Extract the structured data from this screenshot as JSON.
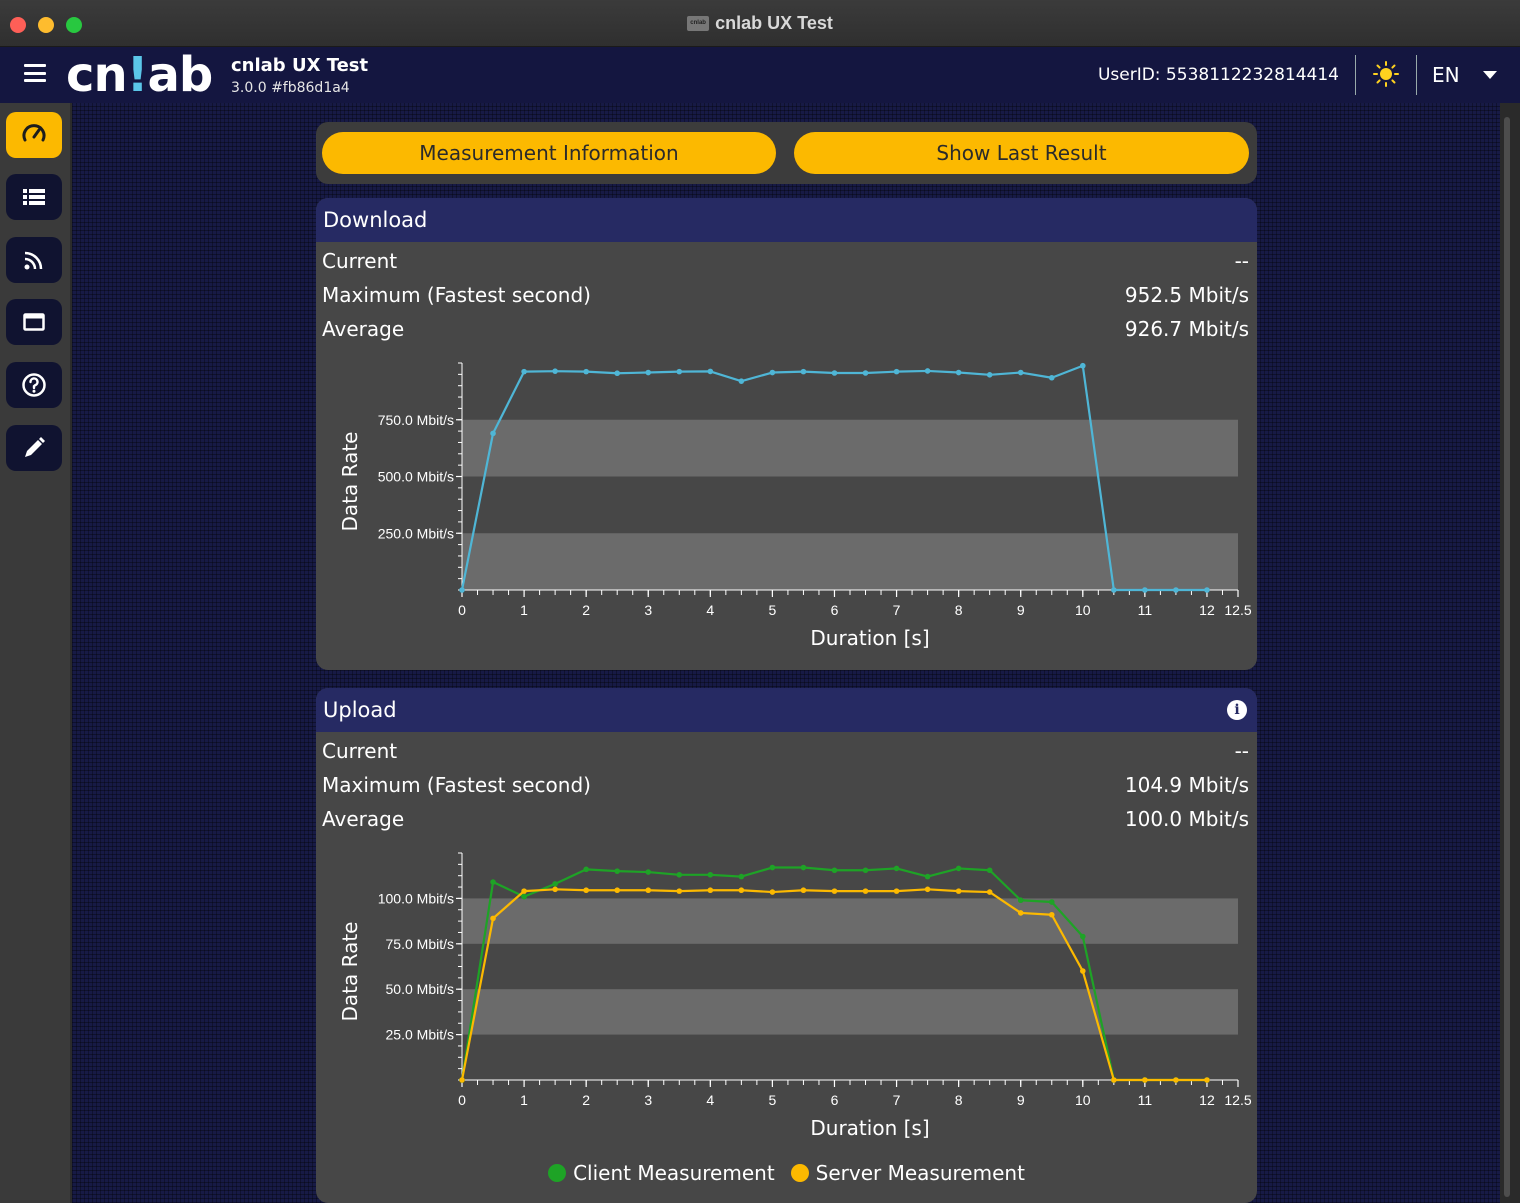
{
  "window": {
    "title": "cnlab UX Test",
    "icon_text": "cnlab"
  },
  "header": {
    "logo_left": "cn",
    "logo_bang": "!",
    "logo_right": "ab",
    "app_name": "cnlab UX Test",
    "version": "3.0.0 #fb86d1a4",
    "userid": "UserID: 5538112232814414",
    "language": "EN",
    "theme_icon": "sun-icon"
  },
  "sidebar": {
    "items": [
      {
        "icon": "speedometer-icon",
        "active": true
      },
      {
        "icon": "list-icon",
        "active": false
      },
      {
        "icon": "rss-icon",
        "active": false
      },
      {
        "icon": "window-icon",
        "active": false
      },
      {
        "icon": "help-icon",
        "active": false
      },
      {
        "icon": "pen-icon",
        "active": false
      }
    ]
  },
  "toolbar": {
    "measurement_info": "Measurement Information",
    "show_last_result": "Show Last Result"
  },
  "colors": {
    "accent": "#fcb900",
    "download_line": "#4fb6d6",
    "client": "#1ea326",
    "server": "#fcb900"
  },
  "download": {
    "title": "Download",
    "current_label": "Current",
    "current_value": "--",
    "max_label": "Maximum (Fastest second)",
    "max_value": "952.5 Mbit/s",
    "avg_label": "Average",
    "avg_value": "926.7 Mbit/s"
  },
  "upload": {
    "title": "Upload",
    "current_label": "Current",
    "current_value": "--",
    "max_label": "Maximum (Fastest second)",
    "max_value": "104.9 Mbit/s",
    "avg_label": "Average",
    "avg_value": "100.0 Mbit/s",
    "legend_client": "Client Measurement",
    "legend_server": "Server Measurement"
  },
  "chart_data": [
    {
      "type": "line",
      "xlabel": "Duration [s]",
      "ylabel": "Data Rate",
      "xlim": [
        0,
        12.5
      ],
      "ylim": [
        0,
        1000
      ],
      "xticks": [
        0,
        1,
        2,
        3,
        4,
        5,
        6,
        7,
        8,
        9,
        10,
        11,
        12,
        12.5
      ],
      "yticks": [
        250,
        500,
        750
      ],
      "ytick_labels": [
        "250.0 Mbit/s",
        "500.0 Mbit/s",
        "750.0 Mbit/s"
      ],
      "grid": "alternating bands",
      "series": [
        {
          "x": [
            0,
            0.5,
            1,
            1.5,
            2,
            2.5,
            3,
            3.5,
            4,
            4.5,
            5,
            5.5,
            6,
            6.5,
            7,
            7.5,
            8,
            8.5,
            9,
            9.5,
            10,
            10.5,
            11,
            11.5,
            12
          ],
          "values": [
            0,
            690,
            962,
            964,
            962,
            955,
            958,
            962,
            963,
            920,
            958,
            962,
            956,
            956,
            962,
            965,
            958,
            948,
            958,
            935,
            988,
            0,
            0,
            0,
            0
          ]
        }
      ]
    },
    {
      "type": "line",
      "xlabel": "Duration [s]",
      "ylabel": "Data Rate",
      "xlim": [
        0,
        12.5
      ],
      "ylim": [
        0,
        125
      ],
      "xticks": [
        0,
        1,
        2,
        3,
        4,
        5,
        6,
        7,
        8,
        9,
        10,
        11,
        12,
        12.5
      ],
      "yticks": [
        25,
        50,
        75,
        100
      ],
      "ytick_labels": [
        "25.0 Mbit/s",
        "50.0 Mbit/s",
        "75.0 Mbit/s",
        "100.0 Mbit/s"
      ],
      "grid": "alternating bands",
      "legend": "bottom-center",
      "series": [
        {
          "name": "Client Measurement",
          "x": [
            0,
            0.5,
            1,
            1.5,
            2,
            2.5,
            3,
            3.5,
            4,
            4.5,
            5,
            5.5,
            6,
            6.5,
            7,
            7.5,
            8,
            8.5,
            9,
            9.5,
            10,
            10.5,
            11,
            11.5,
            12
          ],
          "values": [
            0,
            109,
            101,
            108,
            116,
            115,
            114.5,
            113,
            113,
            112,
            117,
            117,
            115.5,
            115.5,
            116.5,
            112,
            116.5,
            115.5,
            99,
            98,
            79,
            0,
            0,
            0,
            0
          ]
        },
        {
          "name": "Server Measurement",
          "x": [
            0,
            0.5,
            1,
            1.5,
            2,
            2.5,
            3,
            3.5,
            4,
            4.5,
            5,
            5.5,
            6,
            6.5,
            7,
            7.5,
            8,
            8.5,
            9,
            9.5,
            10,
            10.5,
            11,
            11.5,
            12
          ],
          "values": [
            0,
            89,
            104,
            105,
            104.5,
            104.5,
            104.5,
            104,
            104.5,
            104.5,
            103.5,
            104.5,
            104,
            104,
            104,
            105,
            104,
            103.5,
            92,
            91,
            60,
            0,
            0,
            0,
            0
          ]
        }
      ]
    }
  ]
}
